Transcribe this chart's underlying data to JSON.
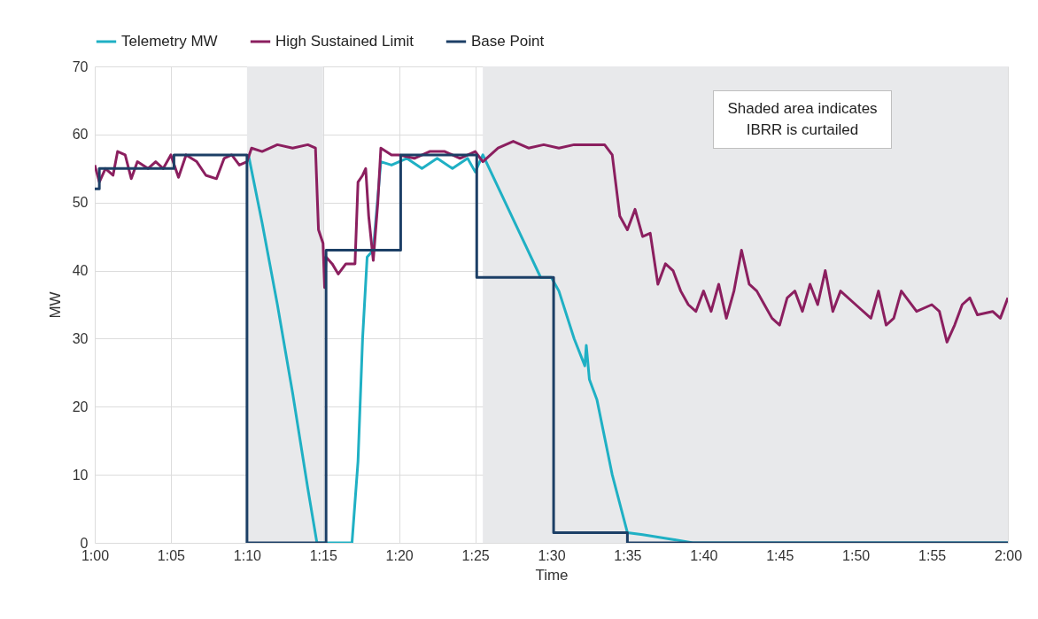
{
  "chart_data": {
    "type": "line",
    "xlabel": "Time",
    "ylabel": "MW",
    "xlim": [
      1.0,
      2.0
    ],
    "xticks": [
      {
        "value": 1.0,
        "label": "1:00"
      },
      {
        "value": 1.0833,
        "label": "1:05"
      },
      {
        "value": 1.1667,
        "label": "1:10"
      },
      {
        "value": 1.25,
        "label": "1:15"
      },
      {
        "value": 1.3333,
        "label": "1:20"
      },
      {
        "value": 1.4167,
        "label": "1:25"
      },
      {
        "value": 1.5,
        "label": "1:30"
      },
      {
        "value": 1.5833,
        "label": "1:35"
      },
      {
        "value": 1.6667,
        "label": "1:40"
      },
      {
        "value": 1.75,
        "label": "1:45"
      },
      {
        "value": 1.8333,
        "label": "1:50"
      },
      {
        "value": 1.9167,
        "label": "1:55"
      },
      {
        "value": 2.0,
        "label": "2:00"
      }
    ],
    "ylim": [
      0,
      70
    ],
    "yticks": [
      0,
      10,
      20,
      30,
      40,
      50,
      60,
      70
    ],
    "grid": true,
    "legend": "top",
    "line_style": "solid",
    "bands": [
      {
        "axis": "x",
        "from": 1.1667,
        "to": 1.25,
        "color": "#e8e9eb"
      },
      {
        "axis": "x",
        "from": 1.425,
        "to": 2.0,
        "color": "#e8e9eb"
      }
    ],
    "annotations": [
      "Shaded area indicates\nIBRR is curtailed"
    ],
    "series": [
      {
        "name": "Telemetry MW",
        "color": "#1fb0c4",
        "type": "line",
        "x": [
          1.1683,
          1.1833,
          1.2,
          1.2167,
          1.2333,
          1.2433,
          1.2817,
          1.2883,
          1.2933,
          1.2983,
          1.305,
          1.3133,
          1.325,
          1.3417,
          1.3583,
          1.375,
          1.3917,
          1.4083,
          1.4167,
          1.425,
          1.4883,
          1.5,
          1.5083,
          1.525,
          1.5367,
          1.5383,
          1.5417,
          1.55,
          1.5667,
          1.5833,
          1.6,
          1.6333,
          1.655,
          2.0
        ],
        "values": [
          57,
          47,
          35,
          22,
          8,
          0,
          0,
          12,
          30,
          42,
          43,
          56,
          55.5,
          56.5,
          55,
          56.5,
          55,
          56.5,
          54.5,
          57,
          39,
          39,
          37,
          30,
          26,
          29,
          24,
          21,
          10,
          1.5,
          1.2,
          0.5,
          0,
          0
        ]
      },
      {
        "name": "High Sustained Limit",
        "color": "#8b1f5f",
        "type": "line",
        "x": [
          1.0,
          1.005,
          1.0117,
          1.02,
          1.025,
          1.0333,
          1.04,
          1.0467,
          1.0583,
          1.0667,
          1.075,
          1.0833,
          1.0917,
          1.1,
          1.1117,
          1.1217,
          1.1333,
          1.1417,
          1.15,
          1.1583,
          1.1667,
          1.1717,
          1.1833,
          1.2,
          1.2167,
          1.2333,
          1.2417,
          1.245,
          1.25,
          1.2517,
          1.2533,
          1.26,
          1.2667,
          1.275,
          1.285,
          1.2883,
          1.2933,
          1.2967,
          1.3,
          1.305,
          1.31,
          1.3133,
          1.325,
          1.3333,
          1.35,
          1.3667,
          1.3833,
          1.4,
          1.4167,
          1.425,
          1.4417,
          1.4583,
          1.475,
          1.4917,
          1.5083,
          1.525,
          1.5417,
          1.5583,
          1.5667,
          1.575,
          1.5833,
          1.5917,
          1.6,
          1.6083,
          1.6167,
          1.625,
          1.6333,
          1.6417,
          1.65,
          1.6583,
          1.6667,
          1.675,
          1.6833,
          1.6917,
          1.7,
          1.7083,
          1.7167,
          1.725,
          1.7333,
          1.7417,
          1.75,
          1.7583,
          1.7667,
          1.775,
          1.7833,
          1.7917,
          1.8,
          1.8083,
          1.8167,
          1.8333,
          1.85,
          1.8583,
          1.8667,
          1.875,
          1.8833,
          1.9,
          1.9167,
          1.925,
          1.9333,
          1.9417,
          1.95,
          1.9583,
          1.9667,
          1.9833,
          1.9917,
          2.0
        ],
        "values": [
          55.5,
          53,
          55,
          54,
          57.5,
          57,
          53.5,
          56,
          55,
          56,
          55,
          57,
          53.7,
          57,
          56,
          54,
          53.5,
          56.5,
          57,
          55.5,
          56,
          58,
          57.5,
          58.5,
          58,
          58.5,
          58,
          46,
          44,
          37.5,
          42,
          41,
          39.5,
          41,
          41,
          53,
          54,
          55,
          48,
          41.5,
          50,
          58,
          57,
          57,
          56.5,
          57.5,
          57.5,
          56.5,
          57.5,
          56,
          58,
          59,
          58,
          58.5,
          58,
          58.5,
          58.5,
          58.5,
          57,
          48,
          46,
          49,
          45,
          45.5,
          38,
          41,
          40,
          37,
          35,
          34,
          37,
          34,
          38,
          33,
          37,
          43,
          38,
          37,
          35,
          33,
          32,
          36,
          37,
          34,
          38,
          35,
          40,
          34,
          37,
          35,
          33,
          37,
          32,
          33,
          37,
          34,
          35,
          34,
          29.5,
          32,
          35,
          36,
          33.5,
          34,
          33,
          36
        ]
      },
      {
        "name": "Base Point",
        "color": "#1c3f66",
        "type": "step",
        "x": [
          1.0,
          1.005,
          1.0867,
          1.1667,
          1.2533,
          1.335,
          1.4183,
          1.5025,
          1.5833,
          2.0
        ],
        "values": [
          52,
          55,
          57,
          0,
          43,
          57,
          39,
          1.5,
          0,
          0
        ]
      }
    ]
  }
}
